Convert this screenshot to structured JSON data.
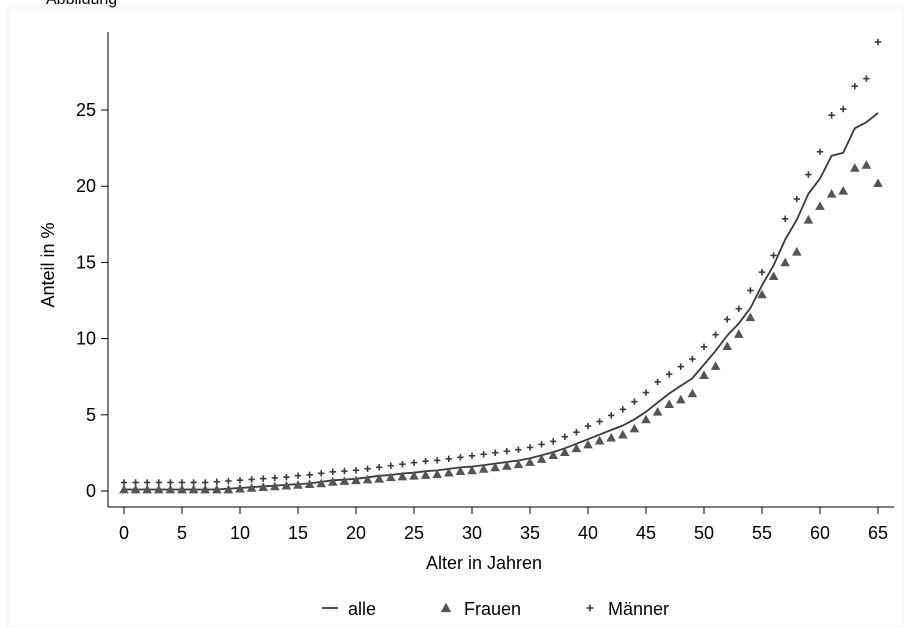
{
  "top_caption": "Abbildung",
  "chart_data": {
    "type": "line",
    "xlabel": "Alter in Jahren",
    "ylabel": "Anteil in %",
    "xlim": [
      0,
      65
    ],
    "ylim": [
      0,
      29
    ],
    "xticks": [
      0,
      5,
      10,
      15,
      20,
      25,
      30,
      35,
      40,
      45,
      50,
      55,
      60,
      65
    ],
    "yticks": [
      0,
      5,
      10,
      15,
      20,
      25
    ],
    "grid": false,
    "legend_position": "bottom",
    "x": [
      0,
      1,
      2,
      3,
      4,
      5,
      6,
      7,
      8,
      9,
      10,
      11,
      12,
      13,
      14,
      15,
      16,
      17,
      18,
      19,
      20,
      21,
      22,
      23,
      24,
      25,
      26,
      27,
      28,
      29,
      30,
      31,
      32,
      33,
      34,
      35,
      36,
      37,
      38,
      39,
      40,
      41,
      42,
      43,
      44,
      45,
      46,
      47,
      48,
      49,
      50,
      51,
      52,
      53,
      54,
      55,
      56,
      57,
      58,
      59,
      60,
      61,
      62,
      63,
      64,
      65
    ],
    "series": [
      {
        "name": "alle",
        "marker": "line",
        "color": "#3a3a3a",
        "values": [
          0.1,
          0.1,
          0.1,
          0.1,
          0.1,
          0.1,
          0.1,
          0.1,
          0.1,
          0.15,
          0.2,
          0.25,
          0.3,
          0.35,
          0.4,
          0.45,
          0.5,
          0.6,
          0.7,
          0.75,
          0.8,
          0.9,
          1.0,
          1.05,
          1.15,
          1.2,
          1.3,
          1.35,
          1.45,
          1.55,
          1.6,
          1.7,
          1.8,
          1.9,
          2.0,
          2.15,
          2.35,
          2.55,
          2.8,
          3.1,
          3.4,
          3.7,
          4.0,
          4.3,
          4.7,
          5.2,
          5.8,
          6.4,
          6.9,
          7.4,
          8.3,
          9.2,
          10.2,
          11.0,
          12.0,
          13.5,
          14.8,
          16.5,
          17.8,
          19.5,
          20.5,
          22.0,
          22.2,
          23.8,
          24.2,
          24.8
        ]
      },
      {
        "name": "Frauen",
        "marker": "triangle",
        "color": "#555555",
        "values": [
          0.1,
          0.1,
          0.1,
          0.1,
          0.1,
          0.1,
          0.1,
          0.1,
          0.1,
          0.1,
          0.15,
          0.2,
          0.25,
          0.3,
          0.35,
          0.4,
          0.45,
          0.5,
          0.6,
          0.65,
          0.7,
          0.75,
          0.8,
          0.9,
          0.95,
          1.0,
          1.05,
          1.1,
          1.2,
          1.3,
          1.35,
          1.45,
          1.55,
          1.65,
          1.75,
          1.9,
          2.1,
          2.35,
          2.55,
          2.8,
          3.05,
          3.3,
          3.5,
          3.7,
          4.1,
          4.7,
          5.2,
          5.7,
          6.0,
          6.4,
          7.6,
          8.2,
          9.5,
          10.3,
          11.4,
          12.9,
          14.1,
          15.0,
          15.7,
          17.8,
          18.7,
          19.5,
          19.7,
          21.2,
          21.4,
          20.2
        ]
      },
      {
        "name": "Männer",
        "marker": "plus",
        "color": "#3a3a3a",
        "values": [
          0.1,
          0.1,
          0.1,
          0.1,
          0.1,
          0.1,
          0.1,
          0.1,
          0.15,
          0.2,
          0.25,
          0.3,
          0.35,
          0.4,
          0.45,
          0.55,
          0.6,
          0.7,
          0.8,
          0.85,
          0.9,
          1.0,
          1.1,
          1.2,
          1.3,
          1.4,
          1.5,
          1.55,
          1.65,
          1.75,
          1.85,
          1.95,
          2.05,
          2.15,
          2.25,
          2.4,
          2.6,
          2.8,
          3.1,
          3.4,
          3.8,
          4.1,
          4.5,
          4.9,
          5.4,
          6.0,
          6.7,
          7.2,
          7.7,
          8.2,
          9.0,
          9.8,
          10.8,
          11.5,
          12.7,
          13.9,
          15.0,
          17.4,
          18.7,
          20.3,
          21.8,
          24.2,
          24.6,
          26.1,
          26.6,
          29.0
        ]
      }
    ]
  }
}
